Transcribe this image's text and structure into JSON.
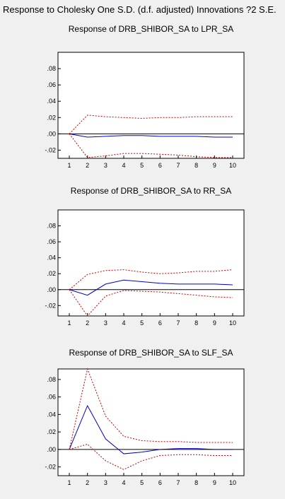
{
  "title": "Response to Cholesky One S.D. (d.f. adjusted) Innovations ?2 S.E.",
  "colors": {
    "response": "#0000cc",
    "band": "#cc0000",
    "zero": "#000000",
    "plot_bg": "#ffffff"
  },
  "chart_data": [
    {
      "type": "line",
      "title": "Response of DRB_SHIBOR_SA to LPR_SA",
      "x": [
        1,
        2,
        3,
        4,
        5,
        6,
        7,
        8,
        9,
        10
      ],
      "ylim": [
        -0.03,
        0.1
      ],
      "yticks": [
        ".08",
        ".06",
        ".04",
        ".02",
        ".00",
        "-.02"
      ],
      "ytick_values": [
        0.08,
        0.06,
        0.04,
        0.02,
        0.0,
        -0.02
      ],
      "series": [
        {
          "role": "response",
          "values": [
            0.0,
            -0.004,
            -0.003,
            -0.002,
            -0.002,
            -0.003,
            -0.003,
            -0.003,
            -0.004,
            -0.004
          ]
        },
        {
          "role": "upper",
          "values": [
            0.0,
            0.023,
            0.021,
            0.02,
            0.019,
            0.02,
            0.02,
            0.021,
            0.021,
            0.021
          ]
        },
        {
          "role": "lower",
          "values": [
            0.0,
            -0.029,
            -0.027,
            -0.024,
            -0.024,
            -0.025,
            -0.026,
            -0.028,
            -0.029,
            -0.029
          ]
        }
      ]
    },
    {
      "type": "line",
      "title": "Response of DRB_SHIBOR_SA to RR_SA",
      "x": [
        1,
        2,
        3,
        4,
        5,
        6,
        7,
        8,
        9,
        10
      ],
      "ylim": [
        -0.033,
        0.1
      ],
      "yticks": [
        ".08",
        ".06",
        ".04",
        ".02",
        ".00",
        "-.02"
      ],
      "ytick_values": [
        0.08,
        0.06,
        0.04,
        0.02,
        0.0,
        -0.02
      ],
      "series": [
        {
          "role": "response",
          "values": [
            0.0,
            -0.007,
            0.007,
            0.012,
            0.01,
            0.008,
            0.007,
            0.007,
            0.007,
            0.006
          ]
        },
        {
          "role": "upper",
          "values": [
            0.0,
            0.019,
            0.024,
            0.025,
            0.022,
            0.02,
            0.021,
            0.023,
            0.023,
            0.025
          ]
        },
        {
          "role": "lower",
          "values": [
            0.0,
            -0.033,
            -0.008,
            -0.001,
            -0.002,
            -0.003,
            -0.005,
            -0.007,
            -0.009,
            -0.01
          ]
        }
      ]
    },
    {
      "type": "line",
      "title": "Response of DRB_SHIBOR_SA to SLF_SA",
      "x": [
        1,
        2,
        3,
        4,
        5,
        6,
        7,
        8,
        9,
        10
      ],
      "ylim": [
        -0.03,
        0.092
      ],
      "yticks": [
        ".08",
        ".06",
        ".04",
        ".02",
        ".00",
        "-.02"
      ],
      "ytick_values": [
        0.08,
        0.06,
        0.04,
        0.02,
        0.0,
        -0.02
      ],
      "series": [
        {
          "role": "response",
          "values": [
            0.0,
            0.05,
            0.012,
            -0.005,
            -0.003,
            0.0,
            0.001,
            0.001,
            0.0,
            0.0
          ]
        },
        {
          "role": "upper",
          "values": [
            0.0,
            0.092,
            0.038,
            0.015,
            0.01,
            0.009,
            0.009,
            0.008,
            0.008,
            0.008
          ]
        },
        {
          "role": "lower",
          "values": [
            0.0,
            0.006,
            -0.013,
            -0.023,
            -0.013,
            -0.007,
            -0.006,
            -0.006,
            -0.007,
            -0.007
          ]
        }
      ]
    }
  ]
}
